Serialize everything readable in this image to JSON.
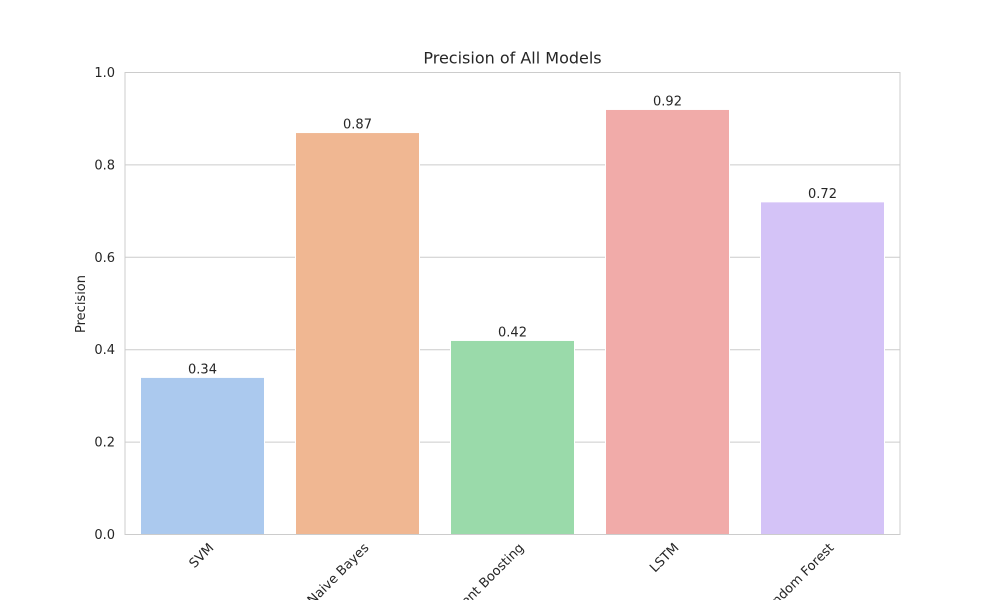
{
  "chart_data": {
    "type": "bar",
    "title": "Precision of All Models",
    "xlabel": "",
    "ylabel": "Precision",
    "categories": [
      "SVM",
      "Naive Bayes",
      "Gradient Boosting",
      "LSTM",
      "Random Forest"
    ],
    "values": [
      0.34,
      0.87,
      0.42,
      0.92,
      0.72
    ],
    "data_labels": [
      "0.34",
      "0.87",
      "0.42",
      "0.92",
      "0.72"
    ],
    "colors": [
      "#abc9ee",
      "#f0b792",
      "#9adaaa",
      "#f1aba9",
      "#d4c3f7"
    ],
    "ylim": [
      0,
      1.0
    ],
    "yticks": [
      0.0,
      0.2,
      0.4,
      0.6,
      0.8,
      1.0
    ],
    "ytick_labels": [
      "0.0",
      "0.2",
      "0.4",
      "0.6",
      "0.8",
      "1.0"
    ],
    "xtick_rotation": "45-degree",
    "grid": true
  }
}
